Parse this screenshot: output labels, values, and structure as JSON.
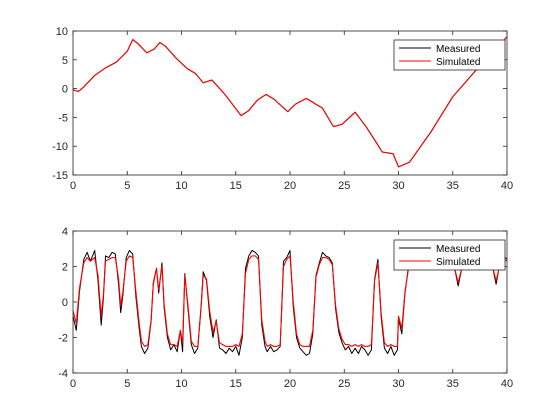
{
  "chart_data": [
    {
      "type": "line",
      "title": "",
      "xlabel": "",
      "ylabel": "",
      "xlim": [
        0,
        40
      ],
      "ylim": [
        -15,
        10
      ],
      "x_ticks": [
        0,
        5,
        10,
        15,
        20,
        25,
        30,
        35,
        40
      ],
      "y_ticks": [
        -15,
        -10,
        -5,
        0,
        5,
        10
      ],
      "grid": false,
      "legend_position": "top-right",
      "series": [
        {
          "name": "Measured",
          "color": "#000000",
          "x": [
            0,
            0.5,
            1,
            2,
            3,
            4,
            5,
            5.5,
            6,
            6.8,
            7.5,
            8,
            8.5,
            9.5,
            10.5,
            11.3,
            12,
            12.8,
            14,
            15.5,
            16.2,
            17,
            17.8,
            18.5,
            19.8,
            20.5,
            21.5,
            23,
            24,
            24.8,
            26,
            27,
            28,
            28.5,
            29.5,
            30,
            31,
            33,
            35,
            37,
            40
          ],
          "values": [
            -0.2,
            -0.5,
            0.3,
            2.3,
            3.6,
            4.6,
            6.5,
            8.5,
            7.8,
            6.2,
            6.9,
            8.0,
            7.4,
            5.3,
            3.5,
            2.6,
            1.0,
            1.5,
            -1.0,
            -4.7,
            -3.8,
            -2.0,
            -1.0,
            -1.8,
            -4.0,
            -2.7,
            -1.7,
            -3.4,
            -6.6,
            -6.2,
            -4.1,
            -6.6,
            -9.5,
            -11.0,
            -11.3,
            -13.6,
            -12.8,
            -7.5,
            -1.4,
            2.9,
            9.0
          ]
        },
        {
          "name": "Simulated",
          "color": "#ff0000",
          "x": [
            0,
            0.5,
            1,
            2,
            3,
            4,
            5,
            5.5,
            6,
            6.8,
            7.5,
            8,
            8.5,
            9.5,
            10.5,
            11.3,
            12,
            12.8,
            14,
            15.5,
            16.2,
            17,
            17.8,
            18.5,
            19.8,
            20.5,
            21.5,
            23,
            24,
            24.8,
            26,
            27,
            28,
            28.5,
            29.5,
            30,
            31,
            33,
            35,
            37,
            40
          ],
          "values": [
            -0.2,
            -0.5,
            0.3,
            2.3,
            3.6,
            4.6,
            6.5,
            8.5,
            7.8,
            6.2,
            6.9,
            8.0,
            7.4,
            5.3,
            3.5,
            2.6,
            1.0,
            1.5,
            -1.0,
            -4.7,
            -3.8,
            -2.0,
            -1.0,
            -1.8,
            -4.0,
            -2.7,
            -1.7,
            -3.4,
            -6.6,
            -6.2,
            -4.1,
            -6.6,
            -9.5,
            -11.0,
            -11.3,
            -13.6,
            -12.8,
            -7.5,
            -1.4,
            2.9,
            9.0
          ]
        }
      ]
    },
    {
      "type": "line",
      "title": "",
      "xlabel": "",
      "ylabel": "",
      "xlim": [
        0,
        40
      ],
      "ylim": [
        -4,
        4
      ],
      "x_ticks": [
        0,
        5,
        10,
        15,
        20,
        25,
        30,
        35,
        40
      ],
      "y_ticks": [
        -4,
        -2,
        0,
        2,
        4
      ],
      "grid": false,
      "legend_position": "top-right",
      "series": [
        {
          "name": "Measured",
          "color": "#000000",
          "x": [
            0,
            0.3,
            0.6,
            1.0,
            1.3,
            1.6,
            2.0,
            2.3,
            2.6,
            2.8,
            3.0,
            3.3,
            3.6,
            3.9,
            4.2,
            4.4,
            4.6,
            4.9,
            5.2,
            5.5,
            5.8,
            6.1,
            6.3,
            6.6,
            6.9,
            7.2,
            7.4,
            7.7,
            7.9,
            8.2,
            8.4,
            8.7,
            9.0,
            9.3,
            9.6,
            9.9,
            10.1,
            10.3,
            10.6,
            10.9,
            11.2,
            11.5,
            11.8,
            12.0,
            12.3,
            12.6,
            12.9,
            13.2,
            13.5,
            13.8,
            14.1,
            14.4,
            14.7,
            15.0,
            15.3,
            15.6,
            15.9,
            16.2,
            16.5,
            16.8,
            17.1,
            17.4,
            17.7,
            17.9,
            18.2,
            18.5,
            18.8,
            19.1,
            19.4,
            19.7,
            20.0,
            20.3,
            20.6,
            20.9,
            21.2,
            21.5,
            21.8,
            22.1,
            22.4,
            22.7,
            23.0,
            23.3,
            23.6,
            23.9,
            24.2,
            24.5,
            24.8,
            25.1,
            25.4,
            25.7,
            26.0,
            26.3,
            26.6,
            26.9,
            27.2,
            27.5,
            27.8,
            28.1,
            28.4,
            28.7,
            29.0,
            29.3,
            29.6,
            29.9,
            30.0,
            30.3,
            30.6,
            31.0,
            32.0,
            33.0,
            34.0,
            35.0,
            35.5,
            36.0,
            36.5,
            37.0,
            37.5,
            38.0,
            38.5,
            39.0,
            39.5,
            40.0
          ],
          "values": [
            -0.8,
            -1.6,
            0.6,
            2.4,
            2.8,
            2.3,
            2.9,
            1.2,
            -1.3,
            0.2,
            2.6,
            2.5,
            2.8,
            2.7,
            1.0,
            -0.6,
            0.4,
            2.5,
            2.9,
            2.7,
            0.3,
            -1.5,
            -2.5,
            -2.9,
            -2.6,
            -1.1,
            1.1,
            1.9,
            0.5,
            2.2,
            -0.3,
            -2.0,
            -2.7,
            -2.4,
            -2.8,
            -1.6,
            -2.8,
            1.6,
            -0.4,
            -2.4,
            -2.9,
            -2.6,
            -0.3,
            1.7,
            1.2,
            -0.8,
            -2.0,
            -1.0,
            -2.6,
            -2.7,
            -2.9,
            -2.6,
            -2.8,
            -2.5,
            -3.0,
            -2.0,
            1.9,
            2.6,
            2.9,
            2.8,
            2.6,
            -1.3,
            -2.5,
            -2.8,
            -2.5,
            -2.8,
            -2.7,
            -2.5,
            2.3,
            2.5,
            2.9,
            -0.3,
            -2.0,
            -2.6,
            -2.8,
            -3.0,
            -2.9,
            -1.8,
            1.5,
            2.2,
            2.8,
            2.6,
            2.5,
            2.2,
            -0.4,
            -1.7,
            -2.3,
            -2.7,
            -2.5,
            -2.9,
            -2.6,
            -2.9,
            -2.5,
            -2.7,
            -3.0,
            -2.7,
            1.3,
            2.4,
            -0.8,
            -2.6,
            -2.9,
            -2.5,
            -3.0,
            -2.7,
            -0.9,
            -1.8,
            0.5,
            2.4,
            2.6,
            2.1,
            2.5,
            2.4,
            0.9,
            2.4,
            2.1,
            2.6,
            2.2,
            2.4,
            2.5,
            1.0,
            2.7,
            2.4
          ],
          "x_range_note": ""
        },
        {
          "name": "Simulated",
          "color": "#ff0000",
          "x": [
            0,
            0.3,
            0.6,
            1.0,
            1.3,
            1.6,
            2.0,
            2.3,
            2.6,
            2.8,
            3.0,
            3.3,
            3.6,
            3.9,
            4.2,
            4.4,
            4.6,
            4.9,
            5.2,
            5.5,
            5.8,
            6.1,
            6.3,
            6.6,
            6.9,
            7.2,
            7.4,
            7.7,
            7.9,
            8.2,
            8.4,
            8.7,
            9.0,
            9.3,
            9.6,
            9.9,
            10.1,
            10.3,
            10.6,
            10.9,
            11.2,
            11.5,
            11.8,
            12.0,
            12.3,
            12.6,
            12.9,
            13.2,
            13.5,
            13.8,
            14.1,
            14.4,
            14.7,
            15.0,
            15.3,
            15.6,
            15.9,
            16.2,
            16.5,
            16.8,
            17.1,
            17.4,
            17.7,
            17.9,
            18.2,
            18.5,
            18.8,
            19.1,
            19.4,
            19.7,
            20.0,
            20.3,
            20.6,
            20.9,
            21.2,
            21.5,
            21.8,
            22.1,
            22.4,
            22.7,
            23.0,
            23.3,
            23.6,
            23.9,
            24.2,
            24.5,
            24.8,
            25.1,
            25.4,
            25.7,
            26.0,
            26.3,
            26.6,
            26.9,
            27.2,
            27.5,
            27.8,
            28.1,
            28.4,
            28.7,
            29.0,
            29.3,
            29.6,
            29.9,
            30.0,
            30.3,
            30.6,
            31.0,
            32.0,
            33.0,
            34.0,
            35.0,
            35.5,
            36.0,
            36.5,
            37.0,
            37.5,
            38.0,
            38.5,
            39.0,
            39.5,
            40.0
          ],
          "values": [
            -0.5,
            -1.2,
            0.8,
            2.2,
            2.5,
            2.3,
            2.5,
            1.5,
            -0.8,
            0.4,
            2.3,
            2.4,
            2.5,
            2.5,
            1.3,
            -0.2,
            0.6,
            2.3,
            2.6,
            2.5,
            0.6,
            -1.2,
            -2.2,
            -2.5,
            -2.4,
            -1.0,
            1.0,
            1.9,
            0.7,
            2.0,
            -0.1,
            -1.8,
            -2.4,
            -2.4,
            -2.5,
            -1.6,
            -2.3,
            1.5,
            -0.2,
            -2.2,
            -2.5,
            -2.5,
            -0.4,
            1.5,
            1.3,
            -0.5,
            -1.7,
            -1.1,
            -2.3,
            -2.4,
            -2.5,
            -2.5,
            -2.5,
            -2.4,
            -2.5,
            -1.8,
            1.6,
            2.4,
            2.6,
            2.6,
            2.4,
            -1.0,
            -2.2,
            -2.5,
            -2.4,
            -2.5,
            -2.5,
            -2.4,
            2.0,
            2.4,
            2.6,
            0.0,
            -1.8,
            -2.4,
            -2.5,
            -2.5,
            -2.5,
            -1.6,
            1.4,
            2.1,
            2.5,
            2.5,
            2.4,
            2.1,
            -0.2,
            -1.5,
            -2.1,
            -2.4,
            -2.4,
            -2.5,
            -2.4,
            -2.5,
            -2.4,
            -2.5,
            -2.5,
            -2.4,
            1.2,
            2.2,
            -0.6,
            -2.3,
            -2.5,
            -2.4,
            -2.5,
            -2.5,
            -0.8,
            -1.5,
            0.6,
            2.2,
            2.4,
            2.2,
            2.4,
            2.3,
            1.1,
            2.3,
            2.1,
            2.5,
            2.2,
            2.3,
            2.4,
            1.2,
            2.5,
            2.3
          ]
        }
      ]
    }
  ]
}
